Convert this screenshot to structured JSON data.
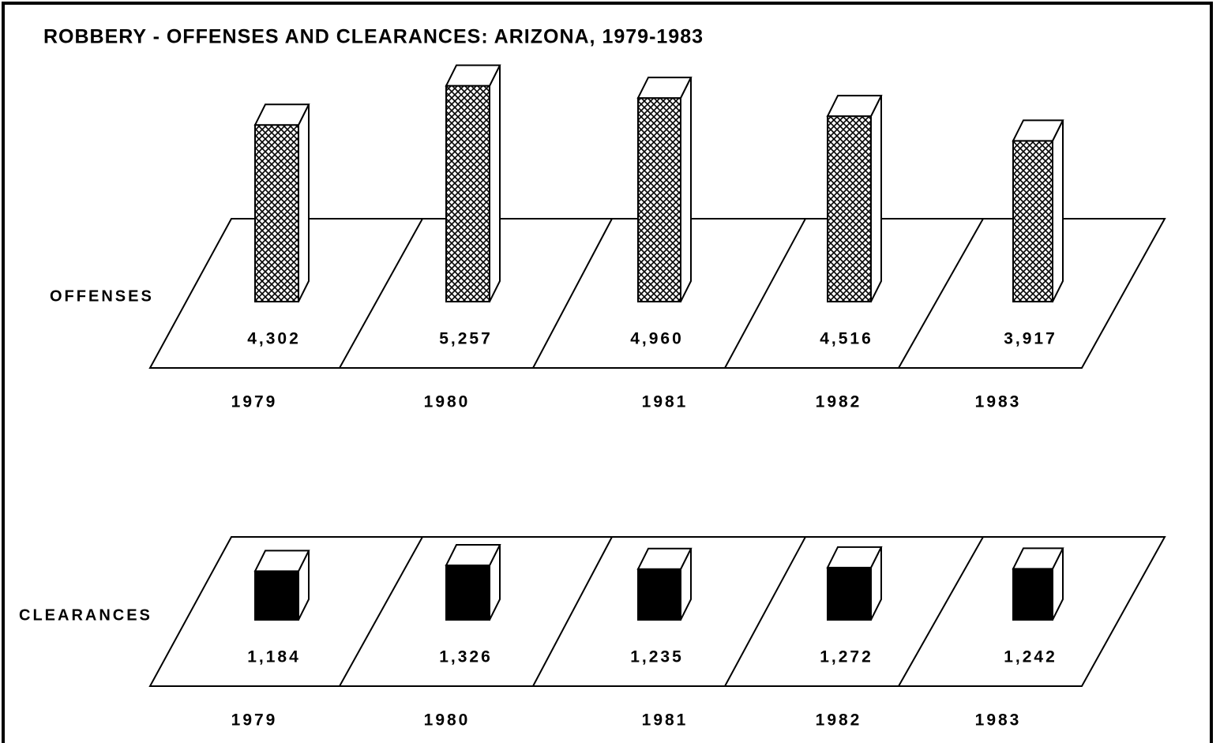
{
  "chart_data": {
    "type": "bar3d",
    "title": "ROBBERY - OFFENSES AND CLEARANCES:  ARIZONA, 1979-1983",
    "categories": [
      "1979",
      "1980",
      "1981",
      "1982",
      "1983"
    ],
    "series": [
      {
        "name": "OFFENSES",
        "color": "#000000",
        "pattern": "crosshatch",
        "values": [
          4302,
          5257,
          4960,
          4516,
          3917
        ],
        "value_labels": [
          "4,302",
          "5,257",
          "4,960",
          "4,516",
          "3,917"
        ]
      },
      {
        "name": "CLEARANCES",
        "color": "#000000",
        "values": [
          1184,
          1326,
          1235,
          1272,
          1242
        ],
        "value_labels": [
          "1,184",
          "1,326",
          "1,235",
          "1,272",
          "1,242"
        ]
      }
    ]
  }
}
